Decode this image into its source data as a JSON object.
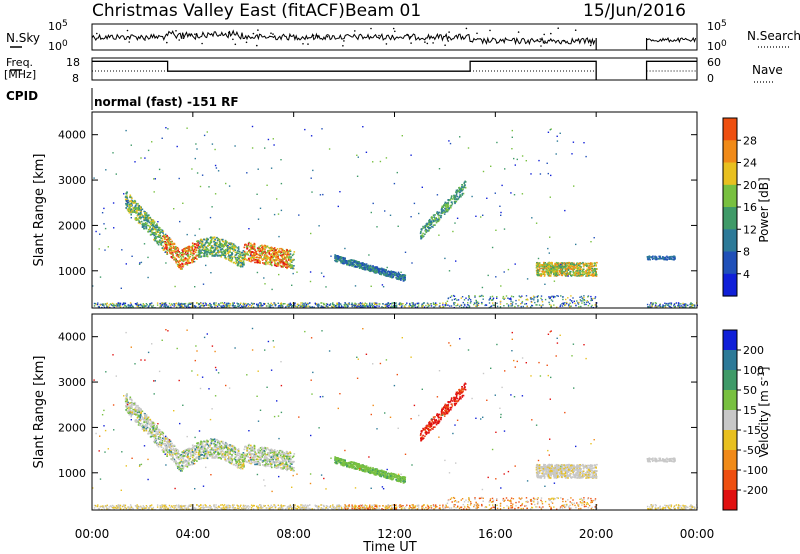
{
  "header": {
    "title": "Christmas Valley East (fitACF)",
    "beam": "Beam 01",
    "date": "15/Jun/2016"
  },
  "panel_labels": {
    "nsky": "N.Sky",
    "nsearch": "N.Search",
    "freq_line1": "Freq.",
    "freq_line2": "[MHz]",
    "nave": "Nave",
    "cpid": "CPID",
    "cpid_value": "normal (fast) -151 RF"
  },
  "colors": {
    "power": [
      "#1020d8",
      "#2050b8",
      "#2d7a98",
      "#3f9a68",
      "#78c040",
      "#e8c020",
      "#f08a18",
      "#ee4f10",
      "#e01010"
    ],
    "velocity": [
      "#1020d8",
      "#2d7a98",
      "#3f9a68",
      "#78c040",
      "#c8c8c8",
      "#e8c020",
      "#f08a18",
      "#ee4f10",
      "#e01010"
    ],
    "ground": "#a8a8a8"
  },
  "chart_data": [
    {
      "type": "line",
      "name": "noise",
      "ylabel_left": "N.Sky",
      "ylabel_right": "N.Search",
      "left_ticks": [
        "10^5",
        "10^0"
      ],
      "right_ticks": [
        "10^5",
        "10^0"
      ],
      "scale": "log",
      "gaps_hours": [
        [
          20.0,
          22.0
        ]
      ]
    },
    {
      "type": "line",
      "name": "frequency",
      "ylabel_left": "Freq. [MHz]",
      "ylabel_right": "Nave",
      "left_ticks": [
        18,
        8
      ],
      "right_ticks": [
        60,
        0
      ],
      "freq_segments_mhz": [
        {
          "from": 0,
          "to": 3,
          "value": 16.5
        },
        {
          "from": 3,
          "to": 15,
          "value": 12
        },
        {
          "from": 15,
          "to": 20,
          "value": 16.5
        },
        {
          "from": 22,
          "to": 24,
          "value": 16.5
        }
      ]
    },
    {
      "type": "heatmap",
      "name": "power",
      "ylabel": "Slant Range [km]",
      "xlabel": "Time UT",
      "ylim": [
        180,
        4500
      ],
      "y_ticks": [
        1000,
        2000,
        3000,
        4000
      ],
      "x_ticks": [
        "00:00",
        "04:00",
        "08:00",
        "12:00",
        "16:00",
        "20:00",
        "00:00"
      ],
      "colorbar_label": "Power [dB]",
      "colorbar_ticks": [
        4,
        8,
        12,
        16,
        20,
        24,
        28
      ],
      "colorbar_range": [
        0,
        30
      ],
      "echo_regions": [
        {
          "t0": 1.3,
          "t1": 8.0,
          "r_start": 2600,
          "r_end": 1250,
          "value": "high",
          "desc": "strong band"
        },
        {
          "t0": 9.6,
          "t1": 12.4,
          "r_start": 1300,
          "r_end": 900,
          "value": "low"
        },
        {
          "t0": 17.6,
          "t1": 20.0,
          "r_start": 1050,
          "r_end": 1050,
          "value": "mid"
        },
        {
          "t0": 22.0,
          "t1": 23.1,
          "r_start": 1300,
          "r_end": 1300,
          "value": "low"
        }
      ]
    },
    {
      "type": "heatmap",
      "name": "velocity",
      "ylabel": "Slant Range [km]",
      "xlabel": "Time UT",
      "ylim": [
        180,
        4500
      ],
      "y_ticks": [
        1000,
        2000,
        3000,
        4000
      ],
      "x_ticks": [
        "00:00",
        "04:00",
        "08:00",
        "12:00",
        "16:00",
        "20:00",
        "00:00"
      ],
      "colorbar_label": "Velocity [m s^-1]",
      "colorbar_ticks": [
        "200",
        "100",
        "50",
        "15",
        "-15",
        "-50",
        "-100",
        "-200"
      ],
      "echo_regions": [
        {
          "t0": 1.3,
          "t1": 8.0,
          "r_start": 2600,
          "r_end": 1250,
          "value": "near-zero / positive"
        },
        {
          "t0": 13.0,
          "t1": 14.8,
          "r_start": 1800,
          "r_end": 2900,
          "value": "-200"
        },
        {
          "t0": 9.6,
          "t1": 12.4,
          "r_start": 1300,
          "r_end": 900,
          "value": "50"
        },
        {
          "t0": 17.6,
          "t1": 20.0,
          "r_start": 1050,
          "r_end": 1050,
          "value": "near-zero"
        }
      ]
    }
  ],
  "axis": {
    "xlabel": "Time UT",
    "x_ticks": [
      "00:00",
      "04:00",
      "08:00",
      "12:00",
      "16:00",
      "20:00",
      "00:00"
    ],
    "ylabel": "Slant Range [km]",
    "y_ticks": [
      "1000",
      "2000",
      "3000",
      "4000"
    ],
    "power_label": "Power [dB]",
    "power_ticks": [
      "4",
      "8",
      "12",
      "16",
      "20",
      "24",
      "28"
    ],
    "velocity_label_main": "Velocity [m s",
    "velocity_label_sup": "-1",
    "velocity_label_end": "]",
    "velocity_ticks": [
      "200",
      "100",
      "50",
      "15",
      "-15",
      "-50",
      "-100",
      "-200"
    ],
    "noise_left_base": [
      "10",
      "10"
    ],
    "noise_left_exp": [
      "5",
      "0"
    ],
    "noise_right_base": [
      "10",
      "10"
    ],
    "noise_right_exp": [
      "5",
      "0"
    ],
    "freq_left_ticks": [
      "18",
      "8"
    ],
    "freq_right_ticks": [
      "60",
      "0"
    ]
  }
}
